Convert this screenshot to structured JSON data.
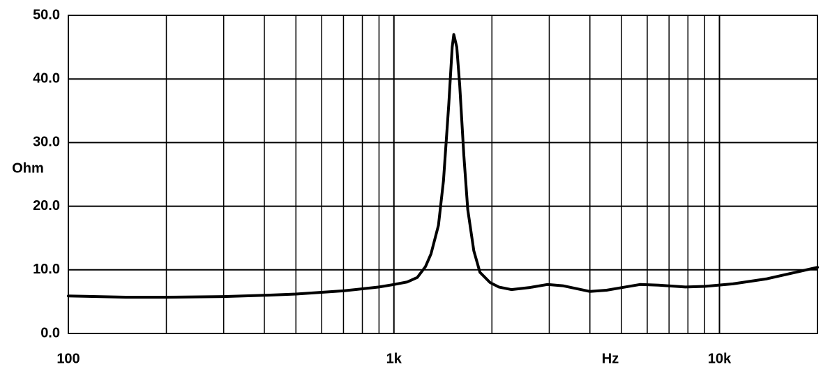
{
  "chart_data": {
    "type": "line",
    "x_label": "Hz",
    "y_label": "Ohm",
    "x_scale": "log",
    "x": [
      100,
      150,
      200,
      300,
      400,
      500,
      700,
      900,
      1000,
      1100,
      1180,
      1250,
      1300,
      1370,
      1420,
      1474,
      1510,
      1527,
      1560,
      1593,
      1640,
      1686,
      1760,
      1838,
      1974,
      2100,
      2295,
      2600,
      2959,
      3300,
      4000,
      4500,
      5000,
      5700,
      6500,
      7860,
      9000,
      11000,
      14000,
      20000
    ],
    "series": [
      {
        "color": "#000000",
        "values": [
          5.9,
          5.7,
          5.7,
          5.8,
          6.0,
          6.2,
          6.7,
          7.3,
          7.7,
          8.1,
          8.8,
          10.5,
          12.5,
          17,
          24,
          36,
          45,
          47,
          45,
          39,
          28,
          19.5,
          13,
          9.6,
          8.0,
          7.3,
          6.9,
          7.2,
          7.7,
          7.5,
          6.6,
          6.8,
          7.2,
          7.7,
          7.6,
          7.3,
          7.4,
          7.8,
          8.6,
          10.4
        ]
      }
    ],
    "xlim": [
      100,
      20000
    ],
    "xticks": [
      {
        "value": 100,
        "label": "100"
      },
      {
        "value": 1000,
        "label": "1k"
      },
      {
        "value": 10000,
        "label": "10k"
      }
    ],
    "x_minor_grid": [
      200,
      300,
      400,
      500,
      600,
      700,
      800,
      900,
      2000,
      3000,
      4000,
      5000,
      6000,
      7000,
      8000,
      9000
    ],
    "ylim": [
      0,
      50
    ],
    "yticks": [
      {
        "value": 0,
        "label": "0.0"
      },
      {
        "value": 10,
        "label": "10.0"
      },
      {
        "value": 20,
        "label": "20.0"
      },
      {
        "value": 30,
        "label": "30.0"
      },
      {
        "value": 40,
        "label": "40.0"
      },
      {
        "value": 50,
        "label": "50.0"
      }
    ],
    "grid": true
  }
}
